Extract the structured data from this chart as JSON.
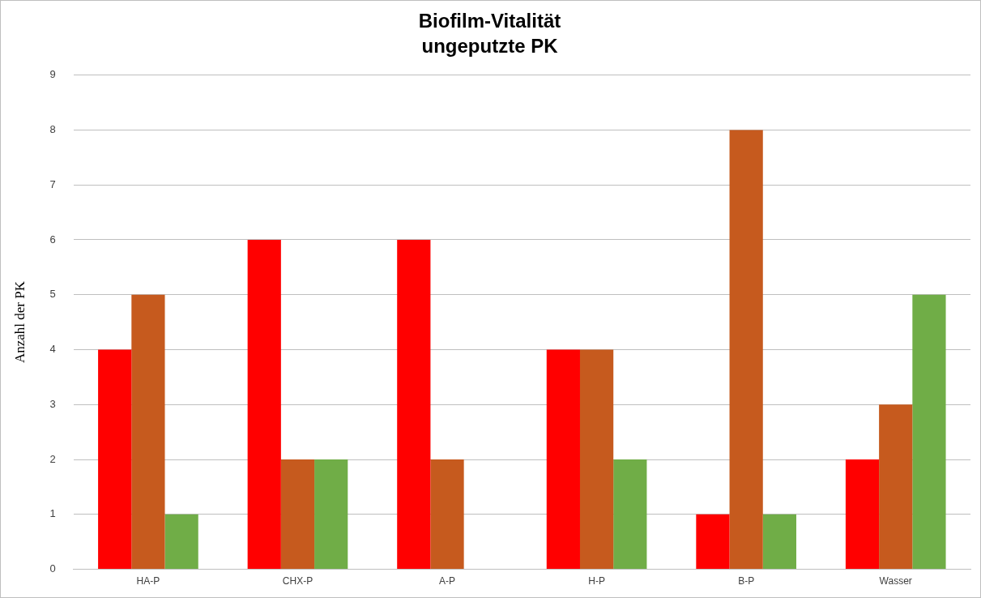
{
  "chart_data": {
    "type": "bar",
    "title": "Biofilm-Vitalität",
    "subtitle": "ungeputzte PK",
    "ylabel": "Anzahl der PK",
    "categories": [
      "HA-P",
      "CHX-P",
      "A-P",
      "H-P",
      "B-P",
      "Wasser"
    ],
    "series": [
      {
        "color": "#ff0000",
        "values": [
          4,
          6,
          6,
          4,
          1,
          2
        ]
      },
      {
        "color": "#c65a1e",
        "values": [
          5,
          2,
          2,
          4,
          8,
          3
        ]
      },
      {
        "color": "#70ad47",
        "values": [
          1,
          2,
          0,
          2,
          1,
          5
        ]
      }
    ],
    "ylim": [
      0,
      9
    ],
    "yticks": [
      0,
      1,
      2,
      3,
      4,
      5,
      6,
      7,
      8,
      9
    ],
    "grid": "y",
    "legend": false
  }
}
